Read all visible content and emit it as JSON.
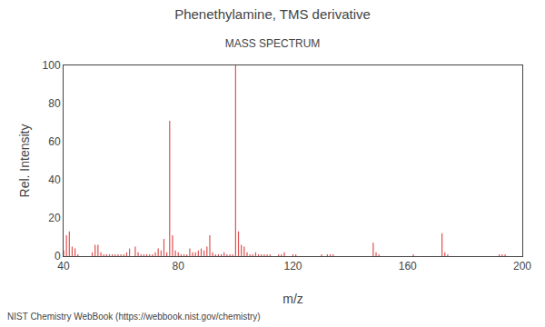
{
  "chart_data": {
    "type": "stem",
    "title": "Phenethylamine, TMS derivative",
    "subtitle": "MASS SPECTRUM",
    "x_label": "m/z",
    "y_label": "Rel. Intensity",
    "annotations": [
      "NIST Chemistry WebBook (https://webbook.nist.gov/chemistry)"
    ],
    "color": "#e05050",
    "xlim": [
      40,
      200
    ],
    "ylim": [
      0,
      100
    ],
    "xticks": [
      40,
      80,
      120,
      160,
      200
    ],
    "yticks": [
      0,
      20,
      40,
      60,
      80,
      100
    ],
    "grid": false,
    "x": [
      40,
      41,
      42,
      43,
      44,
      45,
      50,
      51,
      52,
      53,
      54,
      55,
      56,
      57,
      58,
      59,
      60,
      61,
      62,
      63,
      65,
      66,
      67,
      68,
      69,
      70,
      71,
      72,
      73,
      74,
      75,
      76,
      77,
      78,
      79,
      80,
      81,
      82,
      83,
      84,
      85,
      86,
      87,
      88,
      89,
      90,
      91,
      92,
      93,
      94,
      95,
      96,
      97,
      98,
      99,
      100,
      101,
      102,
      103,
      104,
      105,
      106,
      107,
      108,
      109,
      110,
      111,
      112,
      115,
      116,
      117,
      120,
      121,
      130,
      132,
      133,
      134,
      148,
      149,
      150,
      162,
      172,
      173,
      174,
      192,
      193,
      194
    ],
    "values": [
      3,
      11,
      13,
      5,
      4,
      1,
      2,
      6,
      6,
      2,
      1,
      1,
      1,
      1,
      1,
      1,
      1,
      1,
      2,
      4,
      5,
      2,
      1,
      1,
      1,
      1,
      1,
      2,
      4,
      3,
      9,
      2,
      71,
      11,
      3,
      2,
      1,
      1,
      1,
      4,
      2,
      2,
      3,
      4,
      3,
      5,
      11,
      2,
      1,
      1,
      1,
      2,
      1,
      1,
      1,
      100,
      13,
      6,
      5,
      2,
      1,
      1,
      2,
      1,
      1,
      1,
      1,
      1,
      1,
      1,
      2,
      1,
      1,
      1,
      1,
      1,
      1,
      7,
      2,
      1,
      1,
      12,
      2,
      1,
      1,
      1,
      1
    ]
  }
}
